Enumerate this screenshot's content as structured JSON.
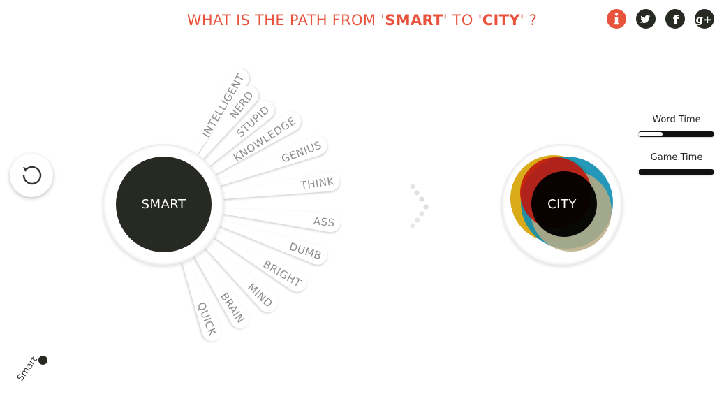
{
  "header": {
    "prefix": "WHAT IS THE PATH FROM '",
    "start_word": "SMART",
    "middle": "' TO '",
    "target_word": "CITY",
    "suffix": "' ?",
    "color": "#e8533d"
  },
  "social": [
    {
      "name": "info-icon",
      "glyph": "i"
    },
    {
      "name": "twitter-icon"
    },
    {
      "name": "facebook-icon",
      "glyph": "f"
    },
    {
      "name": "google-plus-icon",
      "glyph": "g+"
    }
  ],
  "current_node": {
    "label": "SMART"
  },
  "target_node": {
    "label": "CITY"
  },
  "suggestions": [
    "INTELLIGENT",
    "NERD",
    "STUPID",
    "KNOWLEDGE",
    "GENIUS",
    "THINK",
    "ASS",
    "DUMB",
    "BRIGHT",
    "MIND",
    "BRAIN",
    "QUICK"
  ],
  "timers": {
    "word_time_label": "Word Time",
    "word_time_elapsed": 0.32,
    "game_time_label": "Game Time",
    "game_time_elapsed": 0.01
  },
  "path_history": [
    {
      "label": "Smart"
    }
  ],
  "colors": {
    "accent": "#e8533d",
    "node": "#262a22",
    "target_red": "#c0170e",
    "target_blue": "#0d8db2",
    "target_yellow": "#d6a200",
    "target_tan": "#b8aa82"
  }
}
